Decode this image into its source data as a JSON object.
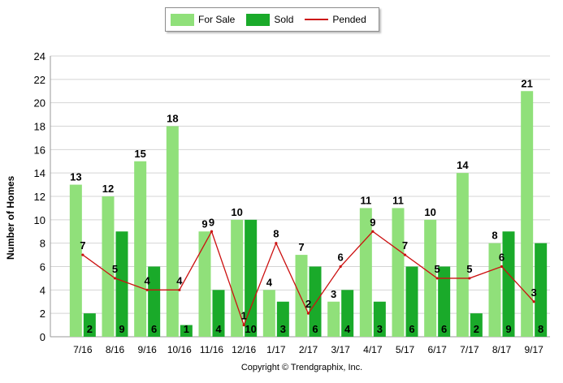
{
  "chart_data": {
    "type": "bar",
    "title": "",
    "xlabel": "",
    "ylabel": "Number of Homes",
    "ylim": [
      0,
      24
    ],
    "yticks": [
      0,
      2,
      4,
      6,
      8,
      10,
      12,
      14,
      16,
      18,
      20,
      22,
      24
    ],
    "grid": true,
    "legend_position": "top-center",
    "categories": [
      "7/16",
      "8/16",
      "9/16",
      "10/16",
      "11/16",
      "12/16",
      "1/17",
      "2/17",
      "3/17",
      "4/17",
      "5/17",
      "6/17",
      "7/17",
      "8/17",
      "9/17"
    ],
    "series": [
      {
        "name": "For Sale",
        "type": "bar",
        "color": "#90e07a",
        "values": [
          13,
          12,
          15,
          18,
          9,
          10,
          4,
          7,
          3,
          11,
          11,
          10,
          14,
          8,
          21
        ]
      },
      {
        "name": "Sold",
        "type": "bar",
        "color": "#1aaa2a",
        "values": [
          2,
          9,
          6,
          1,
          4,
          10,
          3,
          6,
          4,
          3,
          6,
          6,
          2,
          9,
          8
        ]
      },
      {
        "name": "Pended",
        "type": "line",
        "color": "#cc1111",
        "values": [
          7,
          5,
          4,
          4,
          9,
          1,
          8,
          2,
          6,
          9,
          7,
          5,
          5,
          6,
          3
        ]
      }
    ]
  },
  "footer": {
    "copyright": "Copyright © Trendgraphix, Inc."
  }
}
